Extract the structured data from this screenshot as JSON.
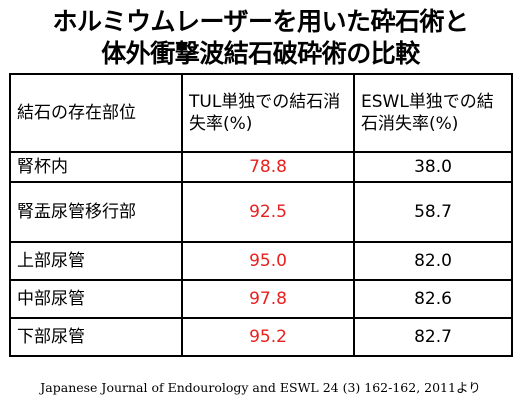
{
  "title": {
    "line1": "ホルミウムレーザーを用いた砕石術と",
    "line2": "体外衝撃波結石破砕術の比較"
  },
  "table": {
    "headers": [
      "結石の存在部位",
      "TUL単独での結石消失率(%)",
      "ESWL単独での結石消失率(%)"
    ],
    "rows": [
      {
        "location": "腎杯内",
        "tul": "78.8",
        "eswl": "38.0"
      },
      {
        "location": "腎盂尿管移行部",
        "tul": "92.5",
        "eswl": "58.7"
      },
      {
        "location": "上部尿管",
        "tul": "95.0",
        "eswl": "82.0"
      },
      {
        "location": "中部尿管",
        "tul": "97.8",
        "eswl": "82.6"
      },
      {
        "location": "下部尿管",
        "tul": "95.2",
        "eswl": "82.7"
      }
    ]
  },
  "source": "Japanese Journal of Endourology and ESWL 24 (3) 162-162, 2011より",
  "colors": {
    "tul_values": "#e8211f",
    "text": "#000000",
    "border": "#000000"
  }
}
